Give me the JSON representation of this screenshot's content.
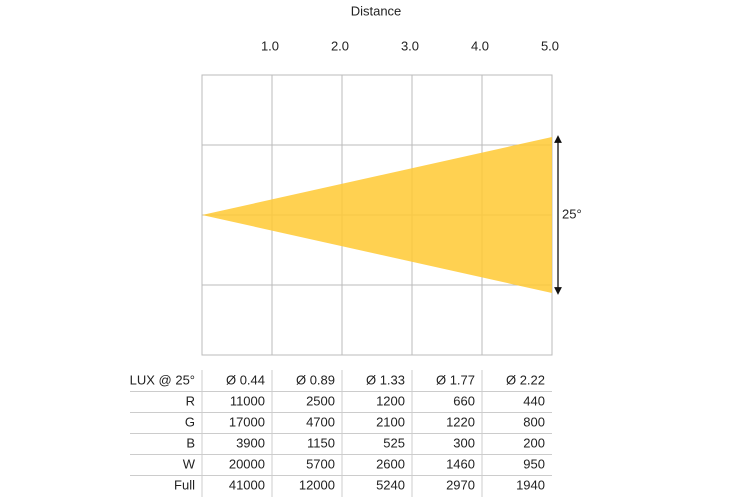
{
  "axis": {
    "title": "Distance",
    "ticks": [
      "1.0",
      "2.0",
      "3.0",
      "4.0",
      "5.0"
    ]
  },
  "beam": {
    "angle_label": "25°"
  },
  "table": {
    "header": [
      "LUX @ 25°",
      "Ø 0.44",
      "Ø 0.89",
      "Ø 1.33",
      "Ø 1.77",
      "Ø 2.22"
    ],
    "rows": [
      [
        "R",
        11000,
        2500,
        1200,
        660,
        440
      ],
      [
        "G",
        17000,
        4700,
        2100,
        1220,
        800
      ],
      [
        "B",
        3900,
        1150,
        525,
        300,
        200
      ],
      [
        "W",
        20000,
        5700,
        2600,
        1460,
        950
      ],
      [
        "Full",
        41000,
        12000,
        5240,
        2970,
        1940
      ]
    ]
  }
}
